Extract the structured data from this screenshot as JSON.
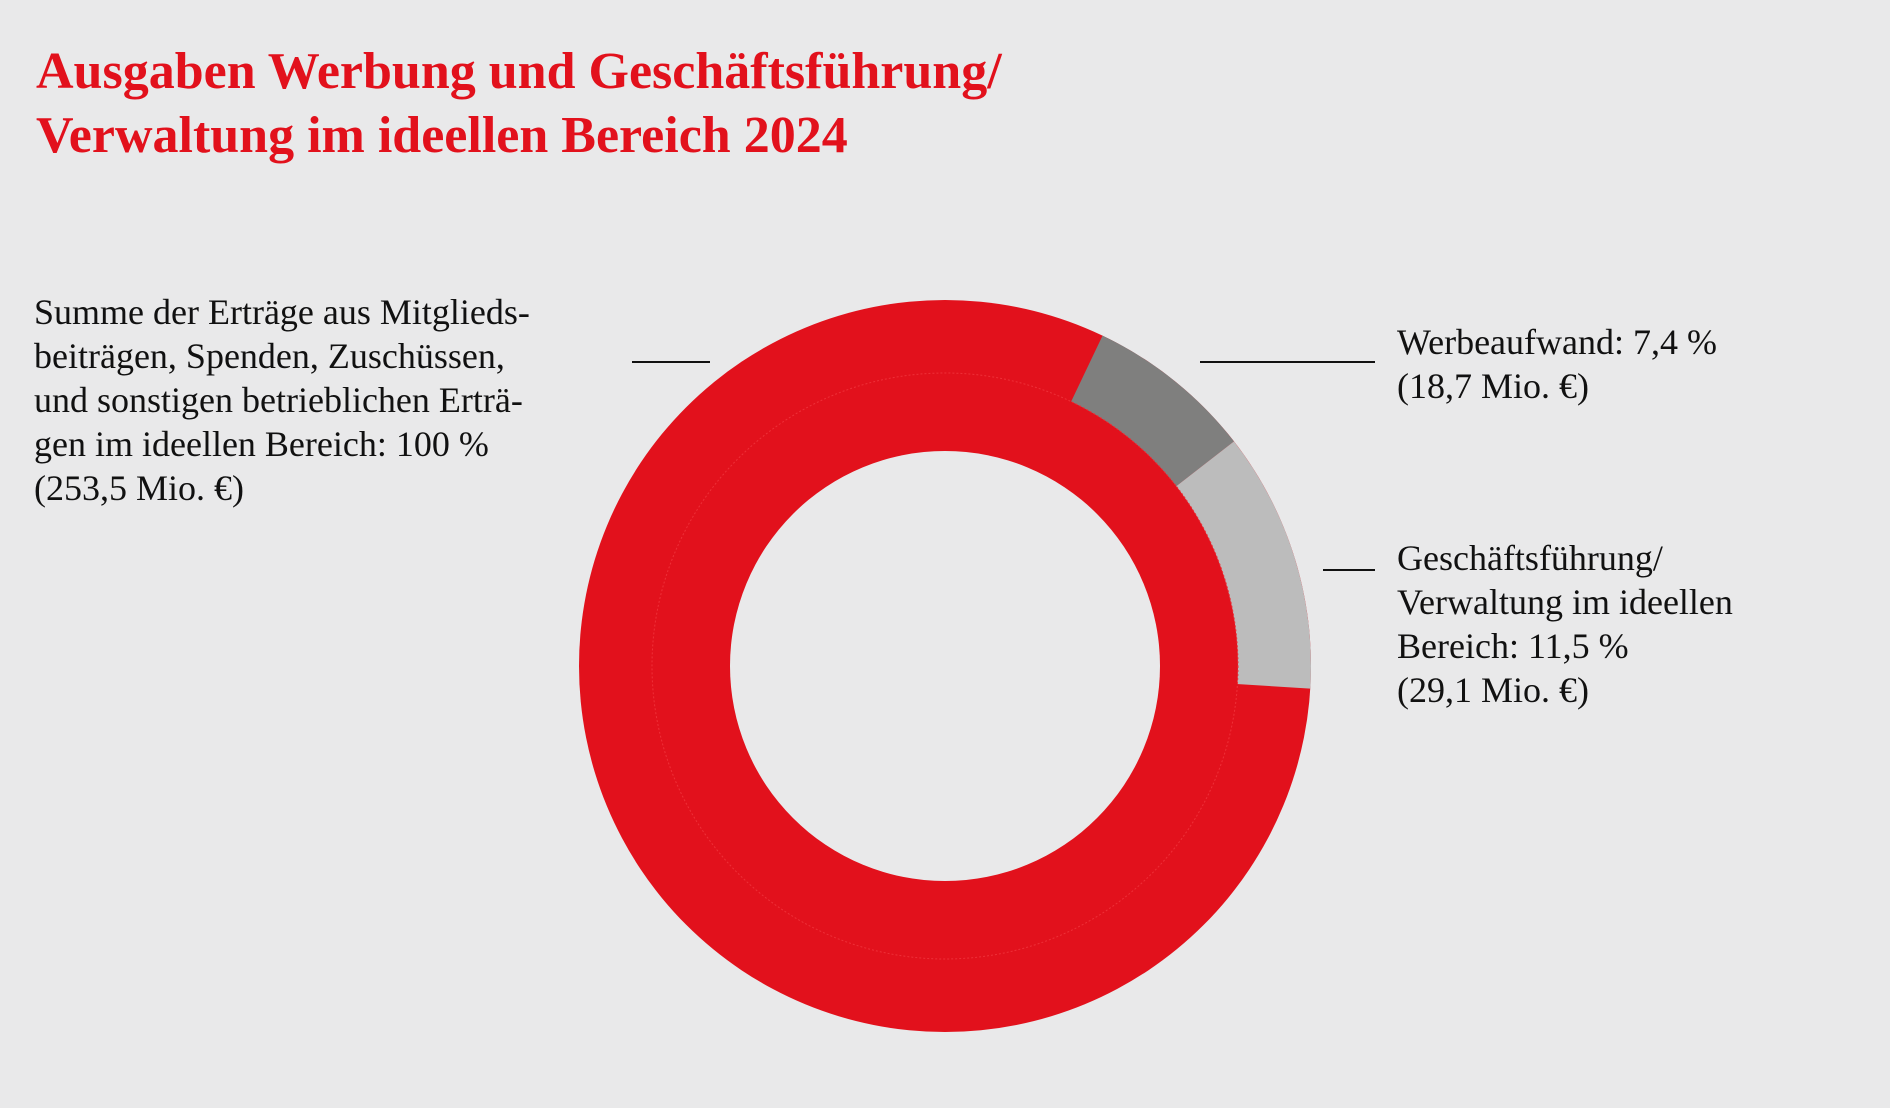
{
  "title": {
    "line1": "Ausgaben Werbung und Geschäftsführung/",
    "line2": "Verwaltung im ideellen Bereich 2024"
  },
  "colors": {
    "background": "#e9e9ea",
    "title": "#e2111c",
    "total": "#e2111c",
    "werbeaufwand": "#7f7f7e",
    "verwaltung": "#bcbcbc"
  },
  "labels": {
    "total": [
      "Summe der Erträge aus Mitglieds-",
      "beiträgen, Spenden, Zuschüssen,",
      "und sonstigen betrieblichen Erträ-",
      "gen im ideellen Bereich: 100 %",
      "(253,5 Mio. €)"
    ],
    "werbeaufwand": [
      "Werbeaufwand: 7,4 %",
      "(18,7 Mio. €)"
    ],
    "verwaltung": [
      "Geschäftsführung/",
      "Verwaltung im ideellen",
      "Bereich: 11,5 %",
      "(29,1 Mio. €)"
    ]
  },
  "chart_data": {
    "type": "pie",
    "subtype": "nested-donut",
    "title": "Ausgaben Werbung und Geschäftsführung/ Verwaltung im ideellen Bereich 2024",
    "inner_ring": [
      {
        "name": "Summe der Erträge aus Mitgliedsbeiträgen, Spenden, Zuschüssen und sonstigen betrieblichen Erträgen im ideellen Bereich",
        "percent": 100,
        "value": 253.5,
        "unit": "Mio. €"
      }
    ],
    "outer_ring": [
      {
        "name": "Werbeaufwand",
        "percent": 7.4,
        "value": 18.7,
        "unit": "Mio. €"
      },
      {
        "name": "Geschäftsführung/Verwaltung im ideellen Bereich",
        "percent": 11.5,
        "value": 29.1,
        "unit": "Mio. €"
      }
    ],
    "start_angle_deg": 25.5
  }
}
